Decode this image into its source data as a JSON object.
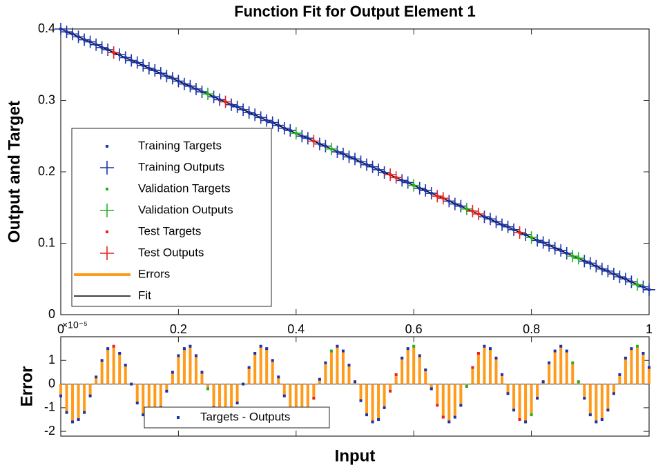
{
  "chart_data": [
    {
      "type": "line",
      "title": "Function Fit for Output Element 1",
      "ylabel": "Output and Target",
      "xlim": [
        0,
        1
      ],
      "ylim": [
        0,
        0.4
      ],
      "xticks": [
        0,
        0.2,
        0.4,
        0.6,
        0.8,
        1
      ],
      "yticks": [
        0,
        0.1,
        0.2,
        0.3,
        0.4
      ],
      "legend": "lower left",
      "series": [
        {
          "name": "Training Targets",
          "color": "#1a33a8",
          "marker": "dot",
          "x": [
            0,
            0.01,
            0.02,
            0.03,
            0.04,
            0.05,
            0.06,
            0.07,
            0.08,
            0.1,
            0.11,
            0.12,
            0.13,
            0.14,
            0.15,
            0.16,
            0.17,
            0.18,
            0.19,
            0.2,
            0.21,
            0.22,
            0.23,
            0.24,
            0.26,
            0.27,
            0.29,
            0.3,
            0.31,
            0.32,
            0.33,
            0.34,
            0.35,
            0.36,
            0.37,
            0.38,
            0.39,
            0.41,
            0.42,
            0.44,
            0.45,
            0.47,
            0.48,
            0.49,
            0.5,
            0.51,
            0.52,
            0.53,
            0.54,
            0.55,
            0.58,
            0.59,
            0.61,
            0.62,
            0.63,
            0.66,
            0.67,
            0.68,
            0.72,
            0.73,
            0.74,
            0.75,
            0.76,
            0.77,
            0.79,
            0.81,
            0.82,
            0.83,
            0.84,
            0.85,
            0.86,
            0.89,
            0.9,
            0.91,
            0.92,
            0.93,
            0.94,
            0.95,
            0.96,
            0.97,
            0.99,
            1
          ],
          "values": [
            0.4,
            0.396,
            0.393,
            0.389,
            0.385,
            0.382,
            0.378,
            0.374,
            0.371,
            0.364,
            0.36,
            0.356,
            0.353,
            0.349,
            0.345,
            0.342,
            0.338,
            0.334,
            0.331,
            0.327,
            0.323,
            0.32,
            0.316,
            0.312,
            0.305,
            0.301,
            0.294,
            0.291,
            0.287,
            0.283,
            0.28,
            0.276,
            0.272,
            0.269,
            0.265,
            0.261,
            0.258,
            0.25,
            0.247,
            0.239,
            0.236,
            0.228,
            0.225,
            0.221,
            0.218,
            0.214,
            0.21,
            0.207,
            0.203,
            0.199,
            0.188,
            0.185,
            0.177,
            0.174,
            0.17,
            0.159,
            0.155,
            0.152,
            0.137,
            0.134,
            0.13,
            0.126,
            0.123,
            0.119,
            0.112,
            0.104,
            0.101,
            0.097,
            0.093,
            0.09,
            0.086,
            0.075,
            0.072,
            0.068,
            0.064,
            0.061,
            0.057,
            0.053,
            0.05,
            0.046,
            0.039,
            0.035
          ]
        },
        {
          "name": "Training Outputs",
          "color": "#1a33a8",
          "marker": "plus",
          "x": [
            0,
            0.01,
            0.02,
            0.03,
            0.04,
            0.05,
            0.06,
            0.07,
            0.08,
            0.1,
            0.11,
            0.12,
            0.13,
            0.14,
            0.15,
            0.16,
            0.17,
            0.18,
            0.19,
            0.2,
            0.21,
            0.22,
            0.23,
            0.24,
            0.26,
            0.27,
            0.29,
            0.3,
            0.31,
            0.32,
            0.33,
            0.34,
            0.35,
            0.36,
            0.37,
            0.38,
            0.39,
            0.41,
            0.42,
            0.44,
            0.45,
            0.47,
            0.48,
            0.49,
            0.5,
            0.51,
            0.52,
            0.53,
            0.54,
            0.55,
            0.58,
            0.59,
            0.61,
            0.62,
            0.63,
            0.66,
            0.67,
            0.68,
            0.72,
            0.73,
            0.74,
            0.75,
            0.76,
            0.77,
            0.79,
            0.81,
            0.82,
            0.83,
            0.84,
            0.85,
            0.86,
            0.89,
            0.9,
            0.91,
            0.92,
            0.93,
            0.94,
            0.95,
            0.96,
            0.97,
            0.99,
            1
          ],
          "values": [
            0.4,
            0.396,
            0.393,
            0.389,
            0.385,
            0.382,
            0.378,
            0.374,
            0.371,
            0.364,
            0.36,
            0.356,
            0.353,
            0.349,
            0.345,
            0.342,
            0.338,
            0.334,
            0.331,
            0.327,
            0.323,
            0.32,
            0.316,
            0.312,
            0.305,
            0.301,
            0.294,
            0.291,
            0.287,
            0.283,
            0.28,
            0.276,
            0.272,
            0.269,
            0.265,
            0.261,
            0.258,
            0.25,
            0.247,
            0.239,
            0.236,
            0.228,
            0.225,
            0.221,
            0.218,
            0.214,
            0.21,
            0.207,
            0.203,
            0.199,
            0.188,
            0.185,
            0.177,
            0.174,
            0.17,
            0.159,
            0.155,
            0.152,
            0.137,
            0.134,
            0.13,
            0.126,
            0.123,
            0.119,
            0.112,
            0.104,
            0.101,
            0.097,
            0.093,
            0.09,
            0.086,
            0.075,
            0.072,
            0.068,
            0.064,
            0.061,
            0.057,
            0.053,
            0.05,
            0.046,
            0.039,
            0.035
          ]
        },
        {
          "name": "Validation Targets",
          "color": "#22b022",
          "marker": "dot",
          "x": [
            0.25,
            0.4,
            0.46,
            0.6,
            0.69,
            0.8,
            0.87,
            0.88,
            0.98
          ],
          "values": [
            0.309,
            0.254,
            0.232,
            0.181,
            0.148,
            0.108,
            0.082,
            0.079,
            0.042
          ]
        },
        {
          "name": "Validation Outputs",
          "color": "#22b022",
          "marker": "plus",
          "x": [
            0.25,
            0.4,
            0.46,
            0.6,
            0.69,
            0.8,
            0.87,
            0.88,
            0.98
          ],
          "values": [
            0.309,
            0.254,
            0.232,
            0.181,
            0.148,
            0.108,
            0.082,
            0.079,
            0.042
          ]
        },
        {
          "name": "Test Targets",
          "color": "#e82020",
          "marker": "dot",
          "x": [
            0.09,
            0.28,
            0.43,
            0.56,
            0.57,
            0.64,
            0.65,
            0.7,
            0.71,
            0.78
          ],
          "values": [
            0.367,
            0.298,
            0.243,
            0.196,
            0.192,
            0.166,
            0.163,
            0.145,
            0.141,
            0.115
          ]
        },
        {
          "name": "Test Outputs",
          "color": "#e82020",
          "marker": "plus",
          "x": [
            0.09,
            0.28,
            0.43,
            0.56,
            0.57,
            0.64,
            0.65,
            0.7,
            0.71,
            0.78
          ],
          "values": [
            0.367,
            0.298,
            0.243,
            0.196,
            0.192,
            0.166,
            0.163,
            0.145,
            0.141,
            0.115
          ]
        },
        {
          "name": "Errors",
          "color": "#ff9a1a",
          "marker": "line",
          "line_width": 4
        },
        {
          "name": "Fit",
          "color": "#000000",
          "marker": "line",
          "line_width": 1.5,
          "x": [
            0,
            1
          ],
          "values": [
            0.4,
            0.035
          ]
        }
      ]
    },
    {
      "type": "stem",
      "ylabel": "Error",
      "xlabel": "Input",
      "y_exponent_label": "×10⁻⁵",
      "xlim": [
        0,
        1
      ],
      "ylim": [
        -2.2,
        2
      ],
      "xticks": [
        0,
        0.2,
        0.4,
        0.6,
        0.8,
        1
      ],
      "yticks": [
        -2,
        -1,
        0,
        1
      ],
      "legend": "lower left",
      "x": [
        0,
        0.01,
        0.02,
        0.03,
        0.04,
        0.05,
        0.06,
        0.07,
        0.08,
        0.09,
        0.1,
        0.11,
        0.12,
        0.13,
        0.14,
        0.15,
        0.16,
        0.17,
        0.18,
        0.19,
        0.2,
        0.21,
        0.22,
        0.23,
        0.24,
        0.25,
        0.26,
        0.27,
        0.28,
        0.29,
        0.3,
        0.31,
        0.32,
        0.33,
        0.34,
        0.35,
        0.36,
        0.37,
        0.38,
        0.39,
        0.4,
        0.41,
        0.42,
        0.43,
        0.44,
        0.45,
        0.46,
        0.47,
        0.48,
        0.49,
        0.5,
        0.51,
        0.52,
        0.53,
        0.54,
        0.55,
        0.56,
        0.57,
        0.58,
        0.59,
        0.6,
        0.61,
        0.62,
        0.63,
        0.64,
        0.65,
        0.66,
        0.67,
        0.68,
        0.69,
        0.7,
        0.71,
        0.72,
        0.73,
        0.74,
        0.75,
        0.76,
        0.77,
        0.78,
        0.79,
        0.8,
        0.81,
        0.82,
        0.83,
        0.84,
        0.85,
        0.86,
        0.87,
        0.88,
        0.89,
        0.9,
        0.91,
        0.92,
        0.93,
        0.94,
        0.95,
        0.96,
        0.97,
        0.98,
        0.99,
        1
      ],
      "series": [
        {
          "name": "Targets - Outputs",
          "color": "#1a33a8",
          "stem_color": "#ff9a1a",
          "values": [
            -0.5,
            -1.2,
            -1.6,
            -1.5,
            -1.2,
            -0.5,
            0.3,
            1.0,
            1.5,
            1.6,
            1.3,
            0.8,
            0.0,
            -0.8,
            -1.3,
            -1.6,
            -1.5,
            -1.0,
            -0.3,
            0.5,
            1.2,
            1.5,
            1.6,
            1.2,
            0.5,
            -0.2,
            -1.0,
            -1.5,
            -1.6,
            -1.4,
            -0.8,
            0.0,
            0.7,
            1.3,
            1.6,
            1.5,
            1.0,
            0.3,
            -0.5,
            -1.1,
            -1.5,
            -1.6,
            -1.2,
            -0.6,
            0.2,
            0.9,
            1.4,
            1.6,
            1.4,
            0.8,
            0.1,
            -0.7,
            -1.3,
            -1.6,
            -1.5,
            -1.0,
            -0.3,
            0.4,
            1.1,
            1.5,
            1.6,
            1.2,
            0.6,
            -0.2,
            -0.9,
            -1.4,
            -1.6,
            -1.4,
            -0.9,
            -0.1,
            0.7,
            1.3,
            1.6,
            1.5,
            1.1,
            0.4,
            -0.4,
            -1.1,
            -1.5,
            -1.6,
            -1.3,
            -0.6,
            0.1,
            0.9,
            1.4,
            1.6,
            1.4,
            0.9,
            0.1,
            -0.6,
            -1.3,
            -1.6,
            -1.5,
            -1.1,
            -0.4,
            0.4,
            1.1,
            1.5,
            1.6,
            1.3,
            0.7
          ]
        }
      ]
    }
  ]
}
